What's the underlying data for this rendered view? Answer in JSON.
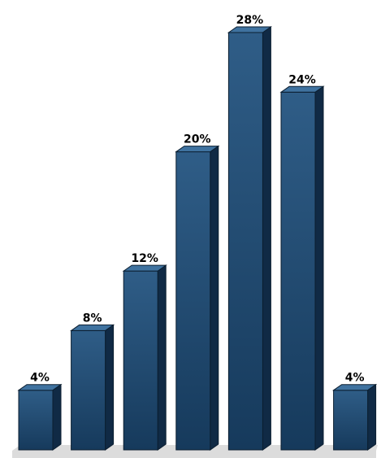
{
  "chart_data": {
    "type": "bar",
    "style": "3d-column",
    "categories": [
      "",
      "",
      "",
      "",
      "",
      "",
      ""
    ],
    "values": [
      4,
      8,
      12,
      20,
      28,
      24,
      4
    ],
    "data_labels": [
      "4%",
      "8%",
      "12%",
      "20%",
      "28%",
      "24%",
      "4%"
    ],
    "unit": "%",
    "title": "",
    "xlabel": "",
    "ylabel": "",
    "ylim": [
      0,
      28
    ],
    "grid": false,
    "legend": "none",
    "colors": {
      "bar_front_top": "#2f5d87",
      "bar_front_bottom": "#163a5c",
      "bar_top": "#3f729f",
      "bar_side": "#102a45",
      "outline": "#0b1e30",
      "floor": "#dcdcdc"
    }
  }
}
